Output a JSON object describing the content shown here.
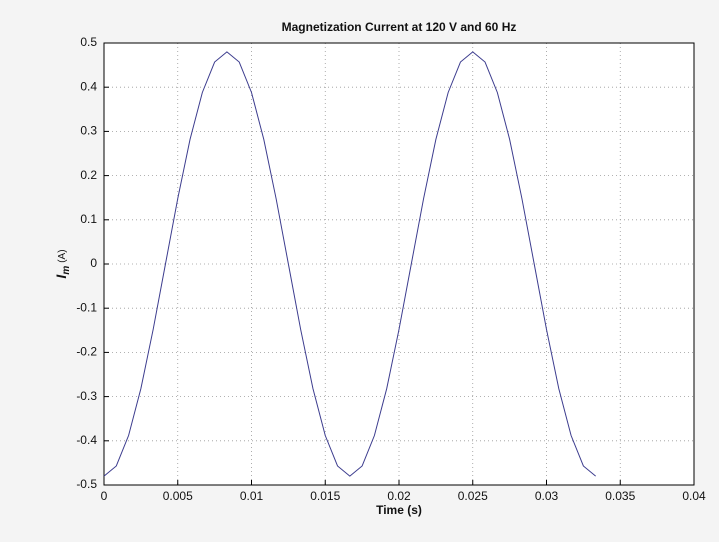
{
  "chart_data": {
    "type": "line",
    "title": "Magnetization Current at 120 V and 60 Hz",
    "xlabel": "Time (s)",
    "ylabel": {
      "symbol": "I",
      "subscript": "m",
      "unit": "(A)"
    },
    "x": [
      0,
      0.000833,
      0.001667,
      0.0025,
      0.003333,
      0.004167,
      0.005,
      0.005833,
      0.006667,
      0.0075,
      0.008333,
      0.009167,
      0.01,
      0.010833,
      0.011667,
      0.0125,
      0.013333,
      0.014167,
      0.015,
      0.015833,
      0.016667,
      0.0175,
      0.018333,
      0.019167,
      0.02,
      0.020833,
      0.021667,
      0.0225,
      0.023333,
      0.024167,
      0.025,
      0.025833,
      0.026667,
      0.0275,
      0.028333,
      0.029167,
      0.03,
      0.030833,
      0.031667,
      0.0325,
      0.033333
    ],
    "series": [
      {
        "color": "#3c3c8e",
        "values": [
          -0.48,
          -0.457,
          -0.388,
          -0.282,
          -0.148,
          0,
          0.148,
          0.282,
          0.388,
          0.457,
          0.48,
          0.457,
          0.388,
          0.282,
          0.148,
          0,
          -0.148,
          -0.282,
          -0.388,
          -0.457,
          -0.48,
          -0.457,
          -0.388,
          -0.282,
          -0.148,
          0,
          0.148,
          0.282,
          0.388,
          0.457,
          0.48,
          0.457,
          0.388,
          0.282,
          0.148,
          0,
          -0.148,
          -0.282,
          -0.388,
          -0.457,
          -0.48
        ]
      }
    ],
    "xlim": [
      0,
      0.04
    ],
    "xticks": [
      0,
      0.005,
      0.01,
      0.015,
      0.02,
      0.025,
      0.03,
      0.035,
      0.04
    ],
    "ylim": [
      -0.5,
      0.5
    ],
    "yticks": [
      -0.5,
      -0.4,
      -0.3,
      -0.2,
      -0.1,
      0,
      0.1,
      0.2,
      0.3,
      0.4,
      0.5
    ],
    "grid": true
  }
}
